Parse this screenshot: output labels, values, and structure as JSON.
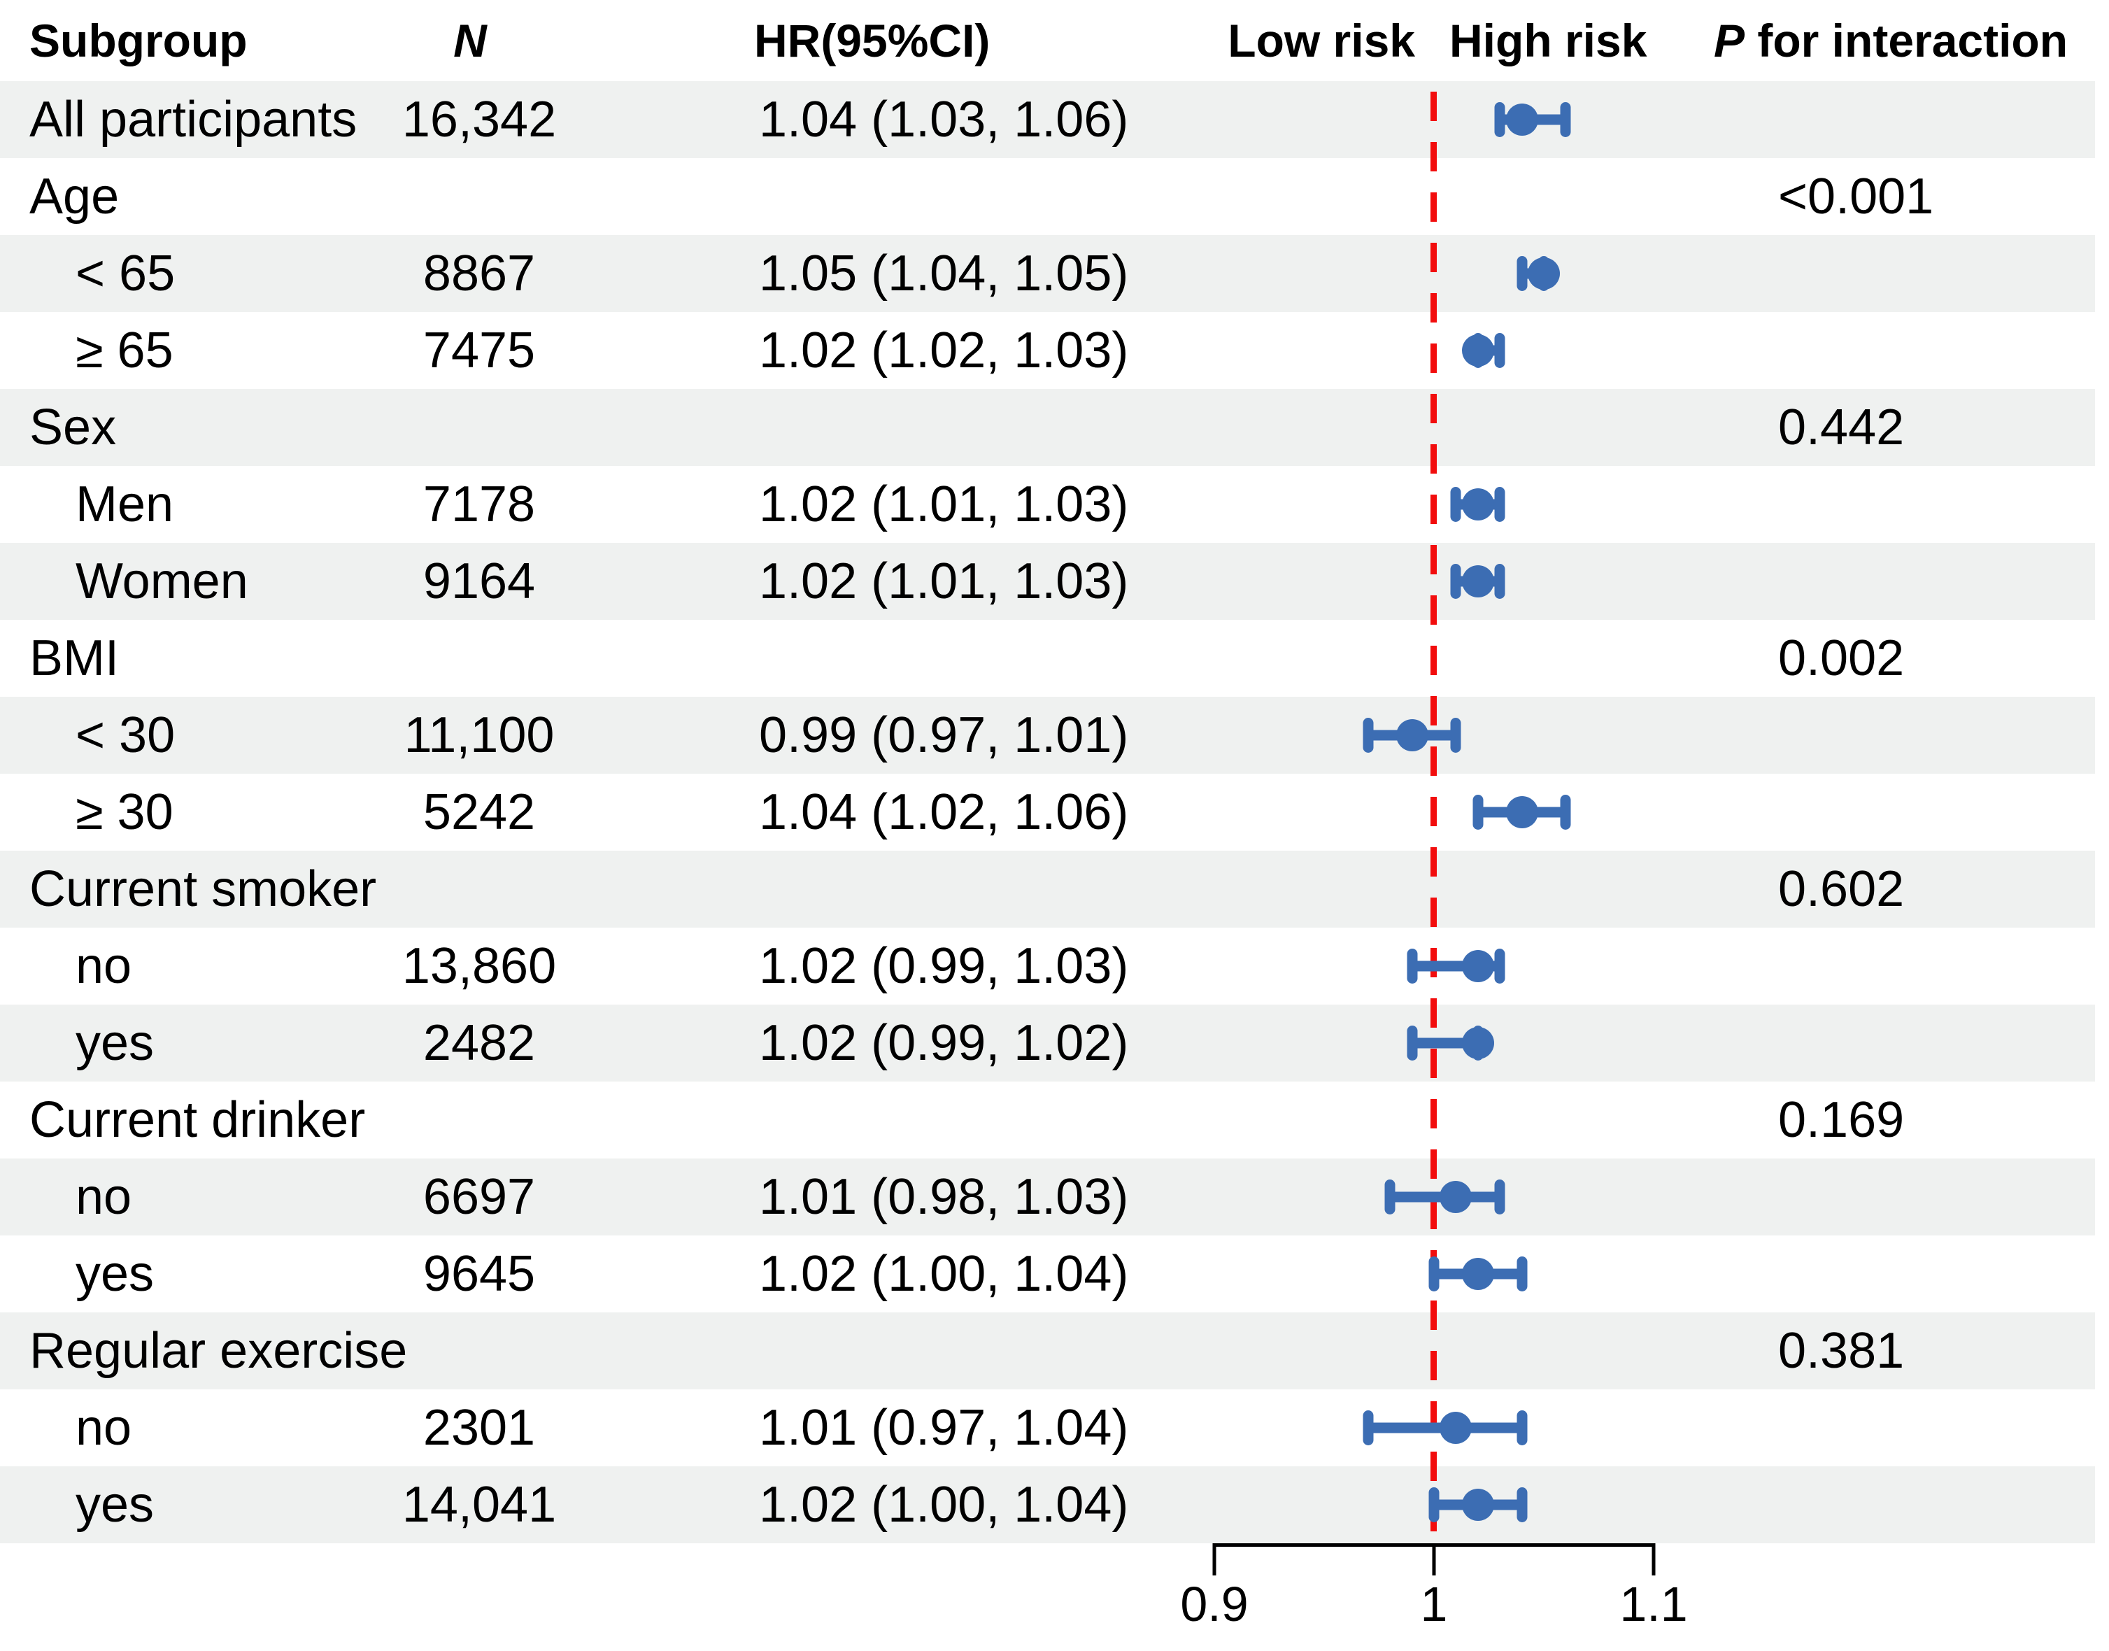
{
  "header": {
    "subgroup": "Subgroup",
    "n": "N",
    "hr": "HR(95%CI)",
    "low_risk": "Low risk",
    "high_risk": "High risk",
    "p_italic": "P",
    "p_rest": " for interaction"
  },
  "axis": {
    "ticks": [
      "0.9",
      "1",
      "1.1"
    ],
    "values": [
      0.9,
      1.0,
      1.1
    ],
    "ref_value": 1.0
  },
  "colors": {
    "marker_blue": "#3c6db3",
    "ref_line_red": "#f20d0d",
    "stripe_gray": "#eff1f0"
  },
  "chart_data": {
    "type": "forest",
    "x_ticks": [
      0.9,
      1.0,
      1.1
    ],
    "x_range": [
      0.87,
      1.17
    ],
    "ref_line": 1.0,
    "legend_low": "Low risk",
    "legend_high": "High risk",
    "rows": [
      {
        "kind": "overall",
        "label": "All participants",
        "n": "16,342",
        "hr_text": "1.04 (1.03, 1.06)",
        "est": 1.04,
        "lo": 1.03,
        "hi": 1.06,
        "shaded": true
      },
      {
        "kind": "group",
        "label": "Age",
        "p": "<0.001",
        "shaded": false
      },
      {
        "kind": "sub",
        "label": "< 65",
        "n": "8867",
        "hr_text": "1.05 (1.04, 1.05)",
        "est": 1.05,
        "lo": 1.04,
        "hi": 1.05,
        "shaded": true
      },
      {
        "kind": "sub",
        "label": "≥ 65",
        "n": "7475",
        "hr_text": "1.02 (1.02, 1.03)",
        "est": 1.02,
        "lo": 1.02,
        "hi": 1.03,
        "shaded": false
      },
      {
        "kind": "group",
        "label": "Sex",
        "p": "0.442",
        "shaded": true
      },
      {
        "kind": "sub",
        "label": "Men",
        "n": "7178",
        "hr_text": "1.02 (1.01, 1.03)",
        "est": 1.02,
        "lo": 1.01,
        "hi": 1.03,
        "shaded": false
      },
      {
        "kind": "sub",
        "label": "Women",
        "n": "9164",
        "hr_text": "1.02 (1.01, 1.03)",
        "est": 1.02,
        "lo": 1.01,
        "hi": 1.03,
        "shaded": true
      },
      {
        "kind": "group",
        "label": "BMI",
        "p": "0.002",
        "shaded": false
      },
      {
        "kind": "sub",
        "label": "< 30",
        "n": "11,100",
        "hr_text": "0.99 (0.97, 1.01)",
        "est": 0.99,
        "lo": 0.97,
        "hi": 1.01,
        "shaded": true
      },
      {
        "kind": "sub",
        "label": "≥ 30",
        "n": "5242",
        "hr_text": "1.04 (1.02, 1.06)",
        "est": 1.04,
        "lo": 1.02,
        "hi": 1.06,
        "shaded": false
      },
      {
        "kind": "group",
        "label": "Current smoker",
        "p": "0.602",
        "shaded": true
      },
      {
        "kind": "sub",
        "label": "no",
        "n": "13,860",
        "hr_text": "1.02 (0.99, 1.03)",
        "est": 1.02,
        "lo": 0.99,
        "hi": 1.03,
        "shaded": false
      },
      {
        "kind": "sub",
        "label": "yes",
        "n": "2482",
        "hr_text": "1.02 (0.99, 1.02)",
        "est": 1.02,
        "lo": 0.99,
        "hi": 1.02,
        "shaded": true
      },
      {
        "kind": "group",
        "label": "Current drinker",
        "p": "0.169",
        "shaded": false
      },
      {
        "kind": "sub",
        "label": "no",
        "n": "6697",
        "hr_text": "1.01 (0.98, 1.03)",
        "est": 1.01,
        "lo": 0.98,
        "hi": 1.03,
        "shaded": true
      },
      {
        "kind": "sub",
        "label": "yes",
        "n": "9645",
        "hr_text": "1.02 (1.00, 1.04)",
        "est": 1.02,
        "lo": 1.0,
        "hi": 1.04,
        "shaded": false
      },
      {
        "kind": "group",
        "label": "Regular exercise",
        "p": "0.381",
        "shaded": true
      },
      {
        "kind": "sub",
        "label": "no",
        "n": "2301",
        "hr_text": "1.01 (0.97, 1.04)",
        "est": 1.01,
        "lo": 0.97,
        "hi": 1.04,
        "shaded": false
      },
      {
        "kind": "sub",
        "label": "yes",
        "n": "14,041",
        "hr_text": "1.02 (1.00, 1.04)",
        "est": 1.02,
        "lo": 1.0,
        "hi": 1.04,
        "shaded": true
      }
    ]
  }
}
